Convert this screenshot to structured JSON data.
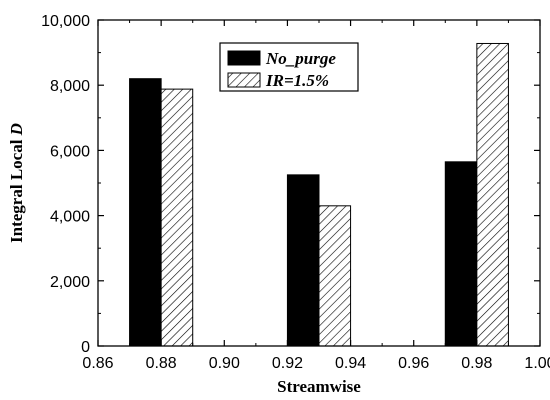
{
  "chart_data": {
    "type": "bar",
    "xlabel": "Streamwise",
    "ylabel_prefix": "Integral Local ",
    "ylabel_italic": "D",
    "xlim": [
      0.86,
      1.0
    ],
    "ylim": [
      0,
      10000
    ],
    "xticks": [
      0.86,
      0.88,
      0.9,
      0.92,
      0.94,
      0.96,
      0.98,
      1.0
    ],
    "xtick_labels": [
      "0.86",
      "0.88",
      "0.90",
      "0.92",
      "0.94",
      "0.96",
      "0.98",
      "1.00"
    ],
    "yticks": [
      0,
      2000,
      4000,
      6000,
      8000,
      10000
    ],
    "ytick_labels": [
      "0",
      "2,000",
      "4,000",
      "6,000",
      "8,000",
      "10,000"
    ],
    "bar_width": 0.01,
    "series": [
      {
        "name": "No_purge",
        "fill": "solid",
        "color": "#000000",
        "x": [
          0.875,
          0.925,
          0.975
        ],
        "values": [
          8200,
          5250,
          5650
        ]
      },
      {
        "name": "IR=1.5%",
        "fill": "hatched",
        "color": "#000000",
        "x": [
          0.885,
          0.935,
          0.985
        ],
        "values": [
          7880,
          4300,
          9280
        ]
      }
    ],
    "legend_position": "top-center",
    "grid": false
  }
}
